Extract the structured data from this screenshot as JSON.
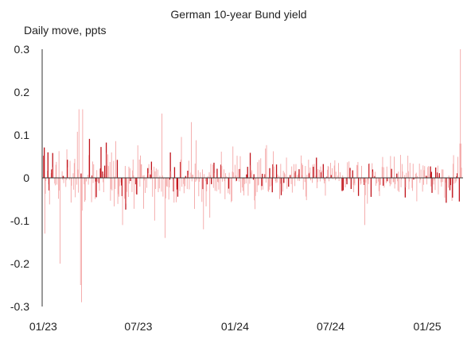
{
  "chart_data": {
    "type": "bar",
    "title": "German 10-year Bund yield",
    "ylabel": "Daily move, ppts",
    "xlabel": "",
    "ylim": [
      -0.3,
      0.3
    ],
    "yticks": [
      "0.3",
      "0.2",
      "0.1",
      "0",
      "-0.1",
      "-0.2",
      "-0.3"
    ],
    "xticks": [
      "01/23",
      "07/23",
      "01/24",
      "07/24",
      "01/25"
    ],
    "x_range": [
      "2023-01-02",
      "2025-03-07"
    ],
    "grid": false,
    "legend": "none",
    "colors": {
      "light_bar": "#f4a6a6",
      "dark_bar": "#c0131b",
      "axis": "#333333"
    },
    "highlights": [
      {
        "date": "2023-01-04",
        "value": -0.13
      },
      {
        "date": "2023-02-02",
        "value": -0.2
      },
      {
        "date": "2023-03-10",
        "value": 0.16
      },
      {
        "date": "2023-03-13",
        "value": -0.25
      },
      {
        "date": "2023-03-15",
        "value": -0.29
      },
      {
        "date": "2023-03-17",
        "value": 0.16
      },
      {
        "date": "2023-06-01",
        "value": -0.11
      },
      {
        "date": "2023-08-15",
        "value": 0.15
      },
      {
        "date": "2023-08-21",
        "value": -0.14
      },
      {
        "date": "2023-10-10",
        "value": 0.13
      },
      {
        "date": "2023-11-02",
        "value": -0.12
      },
      {
        "date": "2024-09-04",
        "value": -0.11
      },
      {
        "date": "2025-03-04",
        "value": 0.08
      },
      {
        "date": "2025-03-05",
        "value": 0.3
      },
      {
        "date": "2025-03-06",
        "value": 0.08
      }
    ]
  }
}
